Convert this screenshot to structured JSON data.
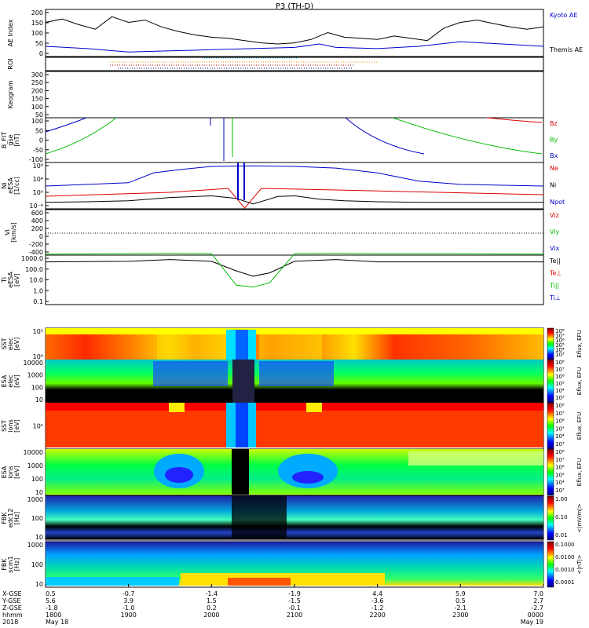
{
  "title": "P3 (TH-D)",
  "colors": {
    "kyoto": "#000000",
    "themis": "#0000cc",
    "red": "#dd0000",
    "green": "#00bb00",
    "blue": "#0000cc",
    "black": "#000000"
  },
  "panels": [
    {
      "id": "ae",
      "ylabel": [
        "AE Index"
      ],
      "ticks": [
        "200",
        "150",
        "100",
        "50",
        "0"
      ],
      "legend": [
        {
          "text": "Kyoto AE",
          "color": "#0000cc"
        },
        {
          "text": "Themis AE",
          "color": "#000000"
        }
      ]
    },
    {
      "id": "roi",
      "ylabel": [
        "ROI"
      ],
      "ticks": [],
      "legend": []
    },
    {
      "id": "keo",
      "ylabel": [
        "Keogram"
      ],
      "ticks": [
        "300",
        "250",
        "200",
        "150",
        "100",
        "50"
      ],
      "legend": []
    },
    {
      "id": "bfit",
      "ylabel": [
        "B_FIT",
        "gse",
        "[nT]"
      ],
      "ticks": [
        "100",
        "50",
        "0",
        "-50",
        "-100"
      ],
      "legend": [
        {
          "text": "Bz",
          "color": "#dd0000"
        },
        {
          "text": "By",
          "color": "#00bb00"
        },
        {
          "text": "Bx",
          "color": "#0000cc"
        }
      ]
    },
    {
      "id": "ni",
      "ylabel": [
        "Ni",
        "eESA",
        "[1/cc]"
      ],
      "ticks": [
        "10⁸",
        "10⁴",
        "10⁰",
        "10⁻⁴"
      ],
      "legend": [
        {
          "text": "Ne",
          "color": "#dd0000"
        },
        {
          "text": "Ni",
          "color": "#000000"
        },
        {
          "text": "Npot",
          "color": "#0000cc"
        }
      ]
    },
    {
      "id": "vi",
      "ylabel": [
        "Vi",
        "[km/s]"
      ],
      "ticks": [
        "600",
        "400",
        "200",
        "0",
        "-200",
        "-400"
      ],
      "legend": [
        {
          "text": "Viz",
          "color": "#dd0000"
        },
        {
          "text": "Viy",
          "color": "#00bb00"
        },
        {
          "text": "Vix",
          "color": "#0000cc"
        }
      ]
    },
    {
      "id": "ti",
      "ylabel": [
        "Ti",
        "eESA",
        "[eV]"
      ],
      "ticks": [
        "1000.0",
        "100.0",
        "10.0",
        "1.0",
        "0.1"
      ],
      "legend": [
        {
          "text": "Te||",
          "color": "#000000"
        },
        {
          "text": "Te⊥",
          "color": "#dd0000"
        },
        {
          "text": "Ti||",
          "color": "#00bb00"
        },
        {
          "text": "Ti⊥",
          "color": "#0000cc"
        }
      ]
    },
    {
      "id": "sst_e",
      "ylabel": [
        "SST",
        "elec",
        "[eV]"
      ],
      "ticks": [
        "10⁵",
        "10⁴"
      ],
      "legend": []
    },
    {
      "id": "esa_e",
      "ylabel": [
        "ESA",
        "elec",
        "[eV]"
      ],
      "ticks": [
        "10000",
        "1000",
        "100",
        "10"
      ],
      "legend": []
    },
    {
      "id": "sst_i",
      "ylabel": [
        "SST",
        "ions",
        "[eV]"
      ],
      "ticks": [
        "10⁵"
      ],
      "legend": []
    },
    {
      "id": "esa_i",
      "ylabel": [
        "ESA",
        "ions",
        "[eV]"
      ],
      "ticks": [
        "10000",
        "1000",
        "100",
        "10"
      ],
      "legend": []
    },
    {
      "id": "fbk_e",
      "ylabel": [
        "FBK",
        "edc12",
        "[Hz]"
      ],
      "ticks": [
        "1000",
        "100",
        "10"
      ],
      "legend": []
    },
    {
      "id": "fbk_b",
      "ylabel": [
        "FBK",
        "scm1",
        "[Hz]"
      ],
      "ticks": [
        "1000",
        "100",
        "10"
      ],
      "legend": []
    }
  ],
  "colorbars": [
    {
      "id": "cb1",
      "label": "Eflux, EFU",
      "ticks": [
        "10⁸",
        "10⁷",
        "10⁶",
        "10⁵",
        "10⁴",
        "10³"
      ]
    },
    {
      "id": "cb2",
      "label": "Eflux, EFU",
      "ticks": [
        "10⁸",
        "10⁷",
        "10⁶",
        "10⁵",
        "10⁴",
        "10³"
      ]
    },
    {
      "id": "cb3",
      "label": "Eflux, EFU",
      "ticks": [
        "10⁸",
        "10⁷",
        "10⁶",
        "10⁵",
        "10⁴",
        "10³"
      ]
    },
    {
      "id": "cb4",
      "label": "Eflux, EFU",
      "ticks": [
        "10⁸",
        "10⁷",
        "10⁶",
        "10⁵",
        "10⁴",
        "10³"
      ]
    },
    {
      "id": "cb5",
      "label": "<|mV/m|>",
      "ticks": [
        "1.00",
        "0.10",
        "0.01"
      ]
    },
    {
      "id": "cb6",
      "label": "<|nT|>",
      "ticks": [
        "0.1000",
        "0.0100",
        "0.0010",
        "0.0001"
      ]
    }
  ],
  "xaxis": {
    "row_labels": [
      "X-GSE",
      "Y-GSE",
      "Z-GSE",
      "hhmm",
      "2018"
    ],
    "columns": [
      {
        "x": "0.5",
        "y": "5.6",
        "z": "-1.8",
        "hhmm": "1800",
        "date": "May 18"
      },
      {
        "x": "-0.7",
        "y": "3.9",
        "z": "-1.0",
        "hhmm": "1900",
        "date": ""
      },
      {
        "x": "-1.4",
        "y": "1.5",
        "z": "0.2",
        "hhmm": "2000",
        "date": ""
      },
      {
        "x": "-1.9",
        "y": "-1.5",
        "z": "-0.1",
        "hhmm": "2100",
        "date": ""
      },
      {
        "x": "4.4",
        "y": "-3.6",
        "z": "-1.2",
        "hhmm": "2200",
        "date": ""
      },
      {
        "x": "5.9",
        "y": "0.5",
        "z": "-2.1",
        "hhmm": "2300",
        "date": ""
      },
      {
        "x": "7.0",
        "y": "2.7",
        "z": "-2.7",
        "hhmm": "0000",
        "date": "May 19"
      }
    ]
  },
  "chart_data": {
    "type": "line",
    "title": "P3 (TH-D)",
    "x_range_hours": [
      18,
      24
    ],
    "x_ticks": [
      "1800",
      "1900",
      "2000",
      "2100",
      "2200",
      "2300",
      "0000"
    ],
    "series": [
      {
        "name": "Themis AE",
        "panel": "ae",
        "x": [
          18.0,
          18.2,
          18.4,
          18.6,
          18.8,
          19.0,
          19.2,
          19.4,
          19.6,
          19.8,
          20.0,
          20.2,
          20.4,
          20.6,
          20.8,
          21.0,
          21.2,
          21.4,
          21.6,
          21.8,
          22.0,
          22.2,
          22.4,
          22.6,
          22.8,
          23.0,
          23.2,
          23.4,
          23.6,
          23.8,
          24.0
        ],
        "values": [
          150,
          165,
          140,
          120,
          175,
          150,
          160,
          130,
          110,
          95,
          85,
          80,
          70,
          60,
          55,
          60,
          75,
          105,
          85,
          80,
          75,
          90,
          80,
          70,
          125,
          150,
          160,
          145,
          130,
          120,
          130
        ]
      },
      {
        "name": "Kyoto AE",
        "panel": "ae",
        "x": [
          18.0,
          18.5,
          19.0,
          19.5,
          20.0,
          20.5,
          21.0,
          21.3,
          21.5,
          22.0,
          22.5,
          23.0,
          23.5,
          24.0
        ],
        "values": [
          45,
          35,
          20,
          25,
          30,
          35,
          40,
          55,
          40,
          35,
          45,
          65,
          55,
          45
        ]
      },
      {
        "name": "Ni",
        "panel": "ni",
        "x": [
          18.0,
          18.5,
          19.0,
          19.5,
          20.0,
          20.3,
          20.5,
          20.8,
          21.0,
          21.3,
          21.6,
          22.0,
          22.5,
          23.0,
          24.0
        ],
        "values": [
          -3,
          -2.8,
          -2.5,
          -1.5,
          -1,
          -1.8,
          -3.5,
          -1.2,
          -1,
          -2,
          -2.5,
          -2.8,
          -3,
          -3,
          -3
        ],
        "units": "log10 1/cc"
      },
      {
        "name": "Npot",
        "panel": "ni",
        "x": [
          18.0,
          18.5,
          19.0,
          19.3,
          19.6,
          20.0,
          20.5,
          21.0,
          21.5,
          22.0,
          22.5,
          23.0,
          24.0
        ],
        "values": [
          2,
          2.5,
          3,
          6,
          7,
          8,
          8.2,
          8,
          7.5,
          6,
          3.5,
          2.5,
          2
        ],
        "units": "log10 1/cc"
      },
      {
        "name": "Te||",
        "panel": "ti",
        "x": [
          18.0,
          19.0,
          19.5,
          20.0,
          20.3,
          20.5,
          20.7,
          21.0,
          21.5,
          22.0,
          23.0,
          24.0
        ],
        "values": [
          400,
          450,
          650,
          450,
          60,
          20,
          40,
          450,
          650,
          400,
          400,
          400
        ],
        "units": "eV"
      },
      {
        "name": "Ti||",
        "panel": "ti",
        "x": [
          18.0,
          19.0,
          19.5,
          20.0,
          20.3,
          20.5,
          20.7,
          21.0,
          21.5,
          22.0,
          23.0,
          24.0
        ],
        "values": [
          2000,
          2200,
          2400,
          2200,
          3,
          2,
          5,
          2200,
          2400,
          2200,
          2200,
          2000
        ],
        "units": "eV"
      }
    ]
  }
}
